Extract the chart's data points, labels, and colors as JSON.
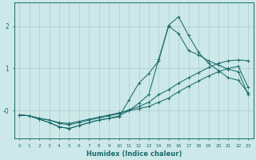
{
  "xlabel": "Humidex (Indice chaleur)",
  "background_color": "#cce8e8",
  "grid_color": "#aacccc",
  "line_color": "#1a6b6b",
  "xlim": [
    -0.5,
    23.5
  ],
  "ylim": [
    -0.65,
    2.55
  ],
  "yticks": [
    0.0,
    1.0,
    2.0
  ],
  "ytick_labels": [
    "-0",
    "1",
    "2"
  ],
  "xticks": [
    0,
    1,
    2,
    3,
    4,
    5,
    6,
    7,
    8,
    9,
    10,
    11,
    12,
    13,
    14,
    15,
    16,
    17,
    18,
    19,
    20,
    21,
    22,
    23
  ],
  "curves": [
    {
      "x": [
        0,
        1,
        2,
        3,
        4,
        5,
        6,
        7,
        8,
        9,
        10,
        11,
        12,
        13,
        14,
        15,
        16,
        17,
        18,
        19,
        20,
        21,
        22,
        23
      ],
      "y": [
        -0.1,
        -0.12,
        -0.18,
        -0.22,
        -0.28,
        -0.3,
        -0.25,
        -0.2,
        -0.15,
        -0.1,
        -0.05,
        0.0,
        0.05,
        0.1,
        0.2,
        0.3,
        0.45,
        0.58,
        0.7,
        0.82,
        0.92,
        1.0,
        1.05,
        0.55
      ]
    },
    {
      "x": [
        0,
        1,
        2,
        3,
        4,
        5,
        6,
        7,
        8,
        9,
        10,
        11,
        12,
        13,
        14,
        15,
        16,
        17,
        18,
        19,
        20,
        21,
        22,
        23
      ],
      "y": [
        -0.1,
        -0.12,
        -0.18,
        -0.22,
        -0.3,
        -0.33,
        -0.28,
        -0.22,
        -0.17,
        -0.12,
        -0.07,
        0.02,
        0.1,
        0.2,
        0.38,
        0.5,
        0.65,
        0.78,
        0.9,
        1.02,
        1.12,
        1.18,
        1.2,
        1.18
      ]
    },
    {
      "x": [
        0,
        1,
        2,
        3,
        4,
        5,
        6,
        7,
        8,
        9,
        10,
        11,
        12,
        13,
        14,
        15,
        16,
        17,
        18,
        19,
        20,
        21,
        22,
        23
      ],
      "y": [
        -0.1,
        -0.12,
        -0.2,
        -0.28,
        -0.38,
        -0.42,
        -0.35,
        -0.28,
        -0.22,
        -0.18,
        -0.15,
        0.25,
        0.65,
        0.88,
        1.18,
        2.02,
        2.22,
        1.78,
        1.38,
        1.12,
        0.95,
        0.78,
        0.72,
        0.42
      ]
    },
    {
      "x": [
        0,
        1,
        2,
        3,
        4,
        5,
        6,
        7,
        8,
        9,
        10,
        11,
        12,
        13,
        14,
        15,
        16,
        17,
        18,
        19,
        20,
        21,
        22,
        23
      ],
      "y": [
        -0.1,
        -0.12,
        -0.2,
        -0.28,
        -0.38,
        -0.42,
        -0.35,
        -0.28,
        -0.22,
        -0.18,
        -0.12,
        0.0,
        0.18,
        0.38,
        1.22,
        2.0,
        1.82,
        1.42,
        1.32,
        1.18,
        1.08,
        0.98,
        0.92,
        0.38
      ]
    }
  ]
}
